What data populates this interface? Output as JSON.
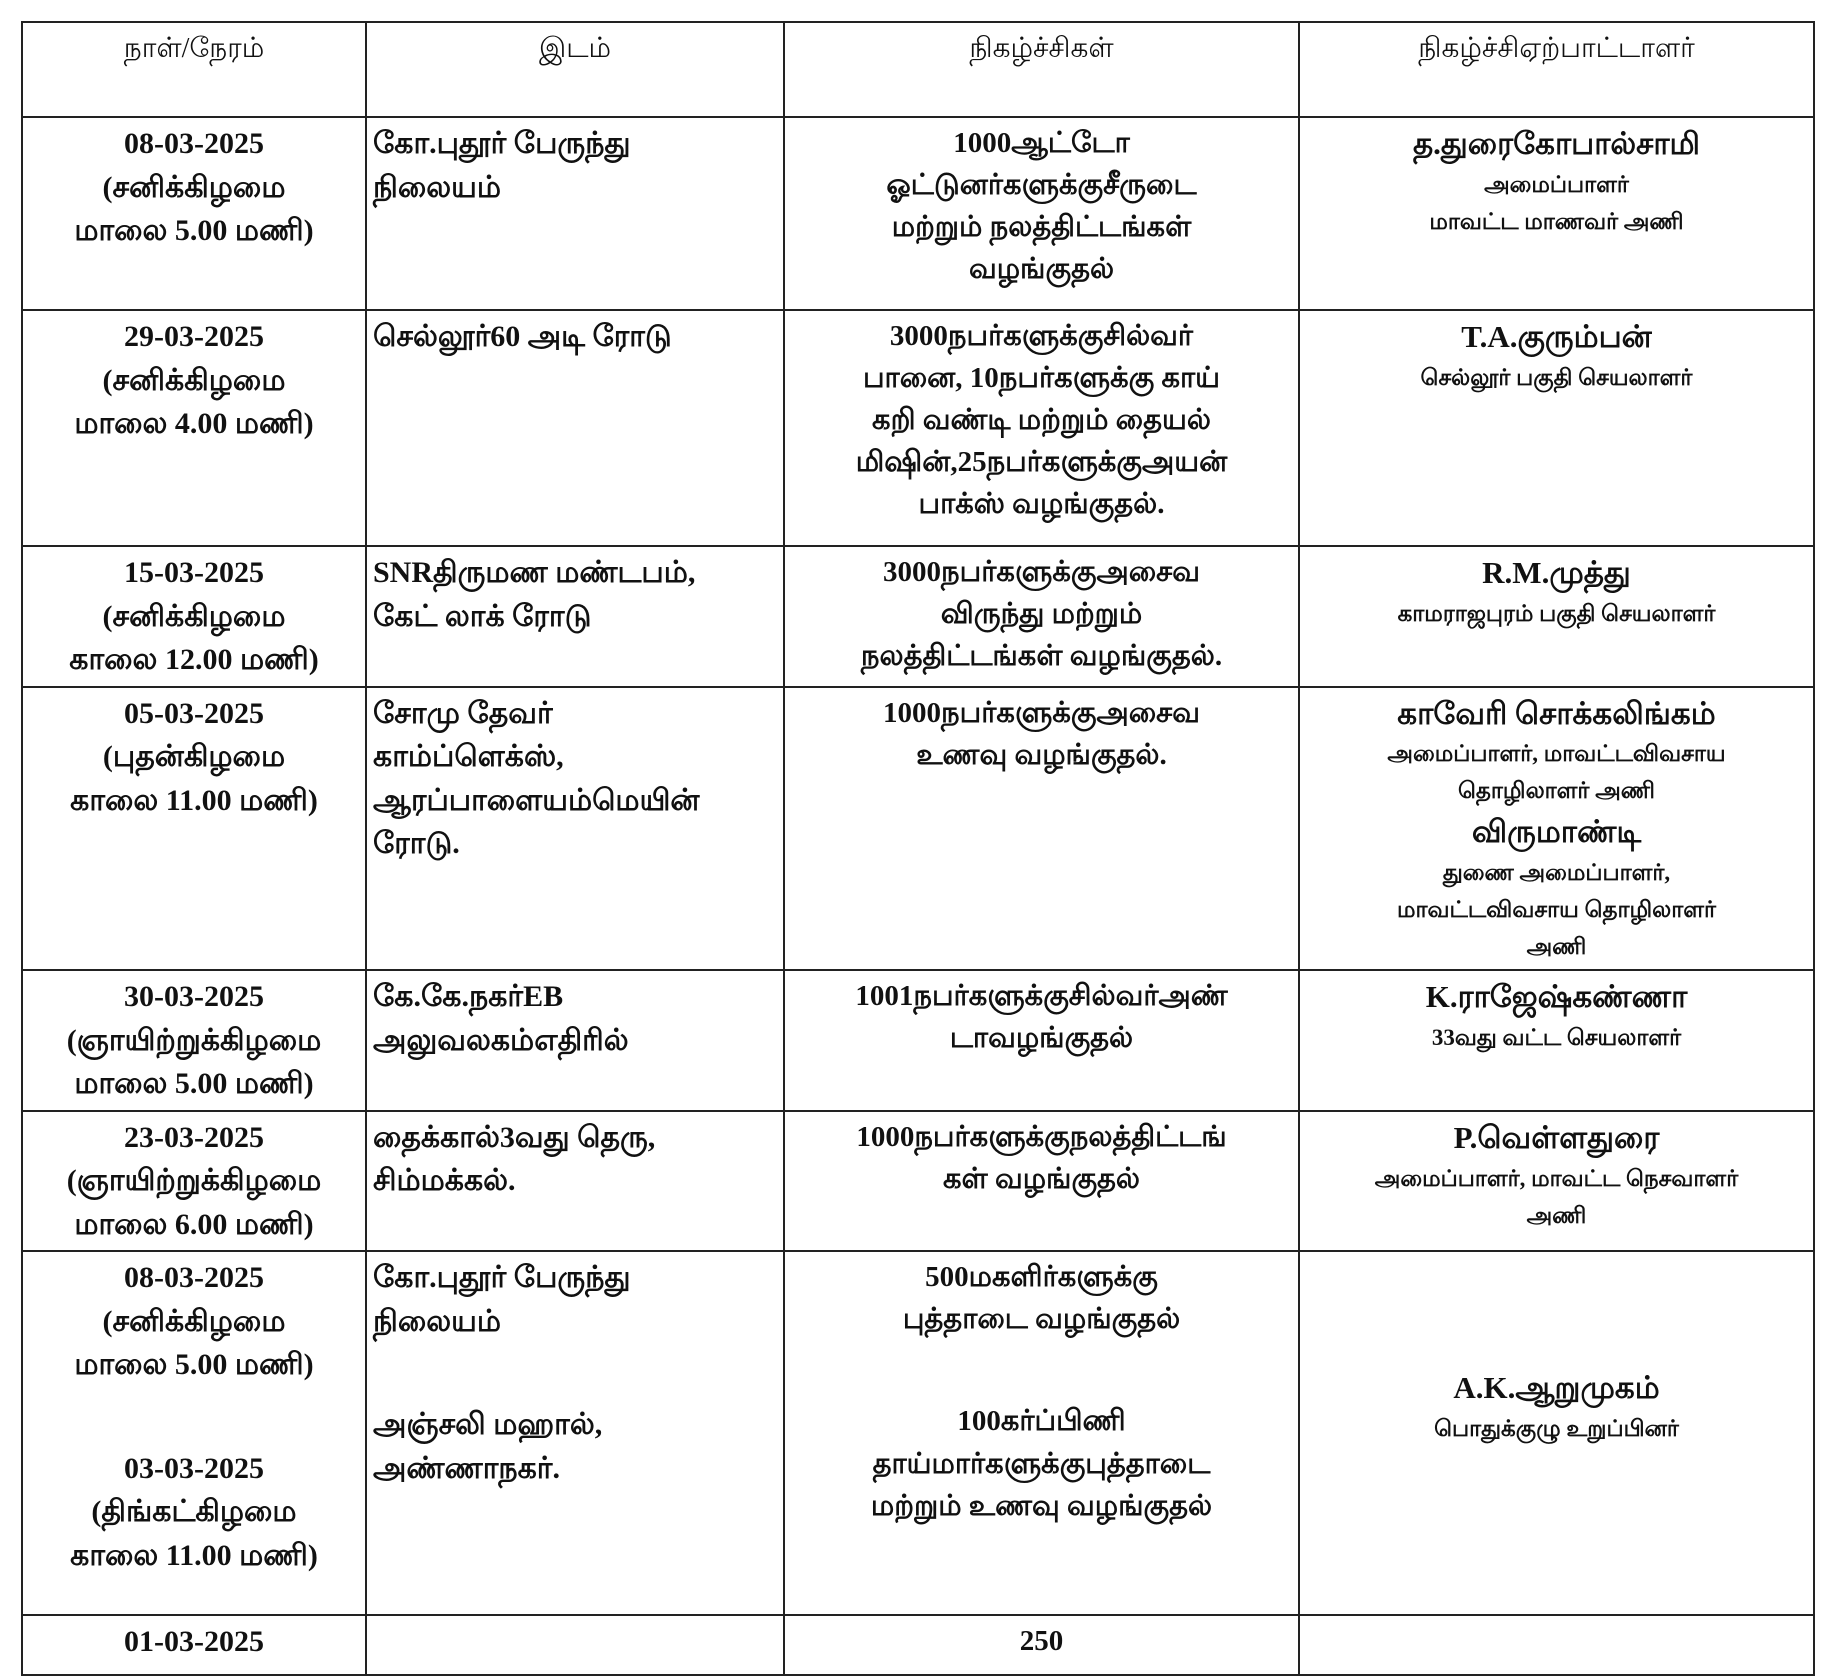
{
  "table": {
    "headers": [
      "நாள்/நேரம்",
      "இடம்",
      "நிகழ்ச்சிகள்",
      "நிகழ்ச்சிஏற்பாட்டாளர்"
    ],
    "rows": [
      {
        "date": [
          "08-03-2025",
          "(சனிக்கிழமை",
          "மாலை 5.00 மணி)"
        ],
        "place": [
          "கோ.புதூர் பேருந்து",
          "நிலையம்"
        ],
        "event": [
          "1000ஆட்டோ",
          "ஓட்டுனர்களுக்குசீருடை",
          "மற்றும் நலத்திட்டங்கள்",
          "வழங்குதல்"
        ],
        "organizer": [
          "த.துரைகோபால்சாமி",
          "அமைப்பாளர்",
          "மாவட்ட மாணவர் அணி"
        ]
      },
      {
        "date": [
          "29-03-2025",
          "(சனிக்கிழமை",
          "மாலை 4.00 மணி)"
        ],
        "place": [
          "செல்லூர்60 அடி ரோடு"
        ],
        "event": [
          "3000நபர்களுக்குசில்வர்",
          "பானை, 10நபர்களுக்கு காய்",
          "கறி வண்டி மற்றும் தையல்",
          "மிஷின்,25நபர்களுக்குஅயன்",
          "பாக்ஸ் வழங்குதல்."
        ],
        "organizer": [
          "T.A.குரும்பன்",
          "செல்லூர் பகுதி செயலாளர்"
        ]
      },
      {
        "date": [
          "15-03-2025",
          "(சனிக்கிழமை",
          "காலை 12.00 மணி)"
        ],
        "place": [
          "SNRதிருமண மண்டபம்,",
          "கேட் லாக் ரோடு"
        ],
        "event": [
          "3000நபர்களுக்குஅசைவ",
          "விருந்து மற்றும்",
          "நலத்திட்டங்கள் வழங்குதல்."
        ],
        "organizer": [
          "R.M.முத்து",
          "காமராஜபுரம் பகுதி செயலாளர்"
        ]
      },
      {
        "date": [
          "05-03-2025",
          "(புதன்கிழமை",
          "காலை 11.00 மணி)"
        ],
        "place": [
          "சோமு தேவர்",
          "காம்ப்ளெக்ஸ்,",
          "ஆரப்பாளையம்மெயின்",
          "ரோடு."
        ],
        "event": [
          "1000நபர்களுக்குஅசைவ",
          "உணவு வழங்குதல்."
        ],
        "organizer": [
          "காவேரி சொக்கலிங்கம்",
          "அமைப்பாளர், மாவட்டவிவசாய",
          "தொழிலாளர் அணி",
          "விருமாண்டி",
          "துணை அமைப்பாளர்,",
          "மாவட்டவிவசாய தொழிலாளர்",
          "அணி"
        ]
      },
      {
        "date": [
          "30-03-2025",
          "(ஞாயிற்றுக்கிழமை",
          "மாலை 5.00 மணி)"
        ],
        "place": [
          "கே.கே.நகர்EB",
          "அலுவலகம்எதிரில்"
        ],
        "event": [
          "1001நபர்களுக்குசில்வர்அண்",
          "டாவழங்குதல்"
        ],
        "organizer": [
          "K.ராஜேஷ்கண்ணா",
          "33வது வட்ட செயலாளர்"
        ]
      },
      {
        "date": [
          "23-03-2025",
          "(ஞாயிற்றுக்கிழமை",
          "மாலை 6.00 மணி)"
        ],
        "place": [
          "தைக்கால்3வது தெரு,",
          "சிம்மக்கல்."
        ],
        "event": [
          "1000நபர்களுக்குநலத்திட்டங்",
          "கள் வழங்குதல்"
        ],
        "organizer": [
          "P.வெள்ளதுரை",
          "அமைப்பாளர், மாவட்ட நெசவாளர்",
          "அணி"
        ]
      },
      {
        "date": [
          "08-03-2025",
          "(சனிக்கிழமை",
          "மாலை 5.00 மணி)",
          "03-03-2025",
          "(திங்கட்கிழமை",
          "காலை 11.00 மணி)"
        ],
        "place": [
          "கோ.புதூர் பேருந்து",
          "நிலையம்",
          "அஞ்சலி மஹால்,",
          "அண்ணாநகர்."
        ],
        "event": [
          "500மகளிர்களுக்கு",
          "புத்தாடை வழங்குதல்",
          "100கர்ப்பிணி",
          "தாய்மார்களுக்குபுத்தாடை",
          "மற்றும் உணவு வழங்குதல்"
        ],
        "organizer": [
          "A.K.ஆறுமுகம்",
          "பொதுக்குழு உறுப்பினர்"
        ]
      },
      {
        "date": [
          "01-03-2025"
        ],
        "place": [],
        "event": [
          "250"
        ],
        "organizer": []
      }
    ]
  }
}
